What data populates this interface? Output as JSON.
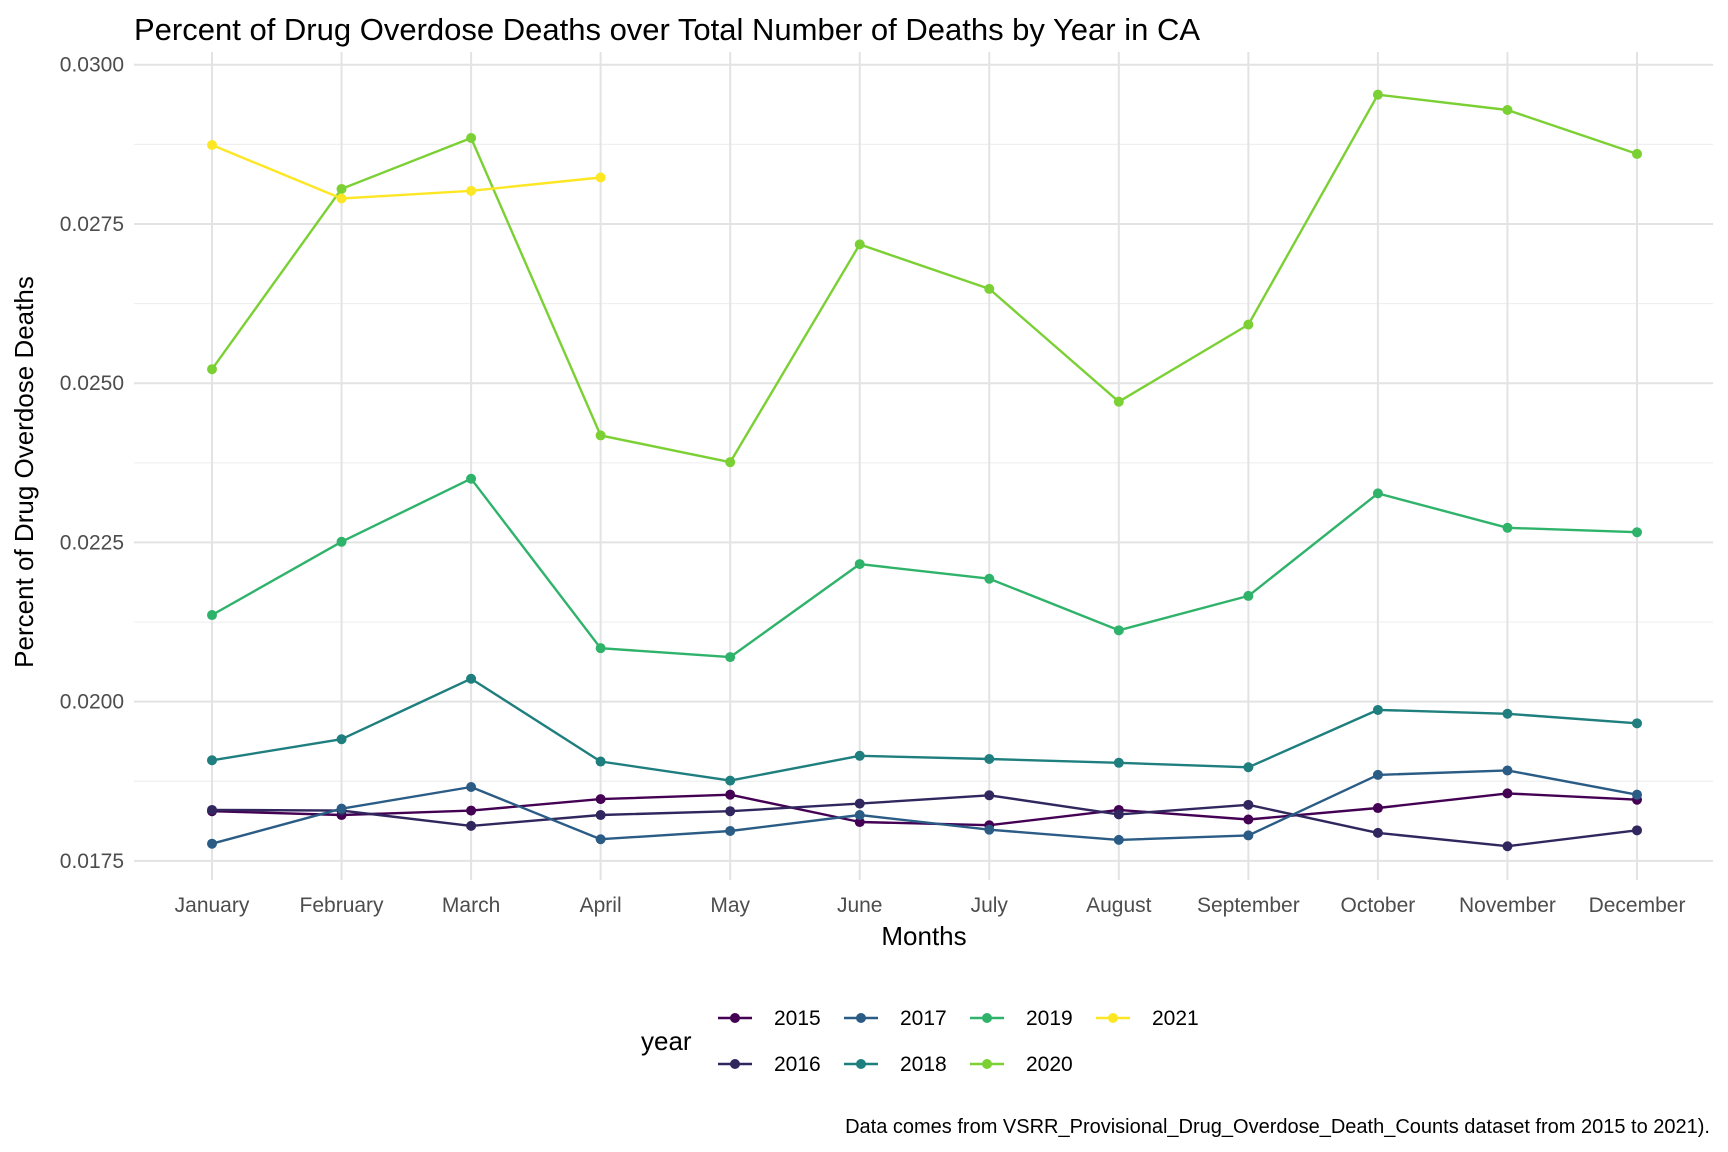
{
  "chart_data": {
    "type": "line",
    "title": "Percent of Drug Overdose Deaths over Total Number of Deaths by Year in CA",
    "xlabel": "Months",
    "ylabel": "Percent of Drug Overdose Deaths",
    "caption": "Data comes from VSRR_Provisional_Drug_Overdose_Death_Counts dataset from 2015 to 2021).",
    "legend_title": "year",
    "legend_position": "bottom",
    "grid": true,
    "ylim": [
      0.0172,
      0.0302
    ],
    "yticks": [
      0.0175,
      0.02,
      0.0225,
      0.025,
      0.0275,
      0.03
    ],
    "ytick_labels": [
      "0.0175",
      "0.0200",
      "0.0225",
      "0.0250",
      "0.0275",
      "0.0300"
    ],
    "categories": [
      "January",
      "February",
      "March",
      "April",
      "May",
      "June",
      "July",
      "August",
      "September",
      "October",
      "November",
      "December"
    ],
    "series": [
      {
        "name": "2015",
        "color": "#440154",
        "values": [
          0.01828,
          0.01822,
          0.01829,
          0.01847,
          0.01854,
          0.01811,
          0.01806,
          0.0183,
          0.01815,
          0.01833,
          0.01856,
          0.01846
        ]
      },
      {
        "name": "2016",
        "color": "#31275e",
        "values": [
          0.0183,
          0.01829,
          0.01805,
          0.01822,
          0.01828,
          0.0184,
          0.01853,
          0.01823,
          0.01838,
          0.01794,
          0.01773,
          0.01798
        ]
      },
      {
        "name": "2017",
        "color": "#2a5c85",
        "values": [
          0.01777,
          0.01832,
          0.01866,
          0.01784,
          0.01797,
          0.01822,
          0.01799,
          0.01783,
          0.0179,
          0.01885,
          0.01892,
          0.01854
        ]
      },
      {
        "name": "2018",
        "color": "#1f7e7e",
        "values": [
          0.01908,
          0.01941,
          0.02036,
          0.01906,
          0.01876,
          0.01915,
          0.0191,
          0.01904,
          0.01897,
          0.01987,
          0.01981,
          0.01966
        ]
      },
      {
        "name": "2019",
        "color": "#2fb36b",
        "values": [
          0.02136,
          0.02251,
          0.0235,
          0.02084,
          0.0207,
          0.02216,
          0.02193,
          0.02112,
          0.02166,
          0.02327,
          0.02273,
          0.02266
        ]
      },
      {
        "name": "2020",
        "color": "#7bd034",
        "values": [
          0.02522,
          0.02805,
          0.02885,
          0.02418,
          0.02376,
          0.02718,
          0.02648,
          0.02471,
          0.02592,
          0.02953,
          0.02929,
          0.0286
        ]
      },
      {
        "name": "2021",
        "color": "#fde725",
        "values": [
          0.02874,
          0.0279,
          0.02802,
          0.02823,
          null,
          null,
          null,
          null,
          null,
          null,
          null,
          null
        ]
      }
    ]
  }
}
